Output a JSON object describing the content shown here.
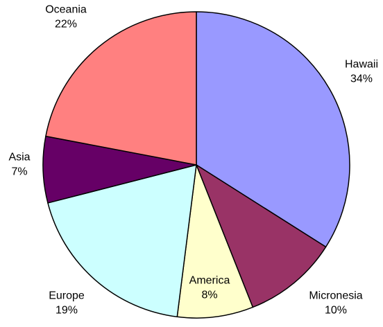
{
  "chart_data": {
    "type": "pie",
    "title": "",
    "slices": [
      {
        "label": "Hawaii",
        "value": 34,
        "value_label": "34%",
        "color": "#9999FF"
      },
      {
        "label": "Micronesia",
        "value": 10,
        "value_label": "10%",
        "color": "#993366"
      },
      {
        "label": "America",
        "value": 8,
        "value_label": "8%",
        "color": "#FFFFCC"
      },
      {
        "label": "Europe",
        "value": 19,
        "value_label": "19%",
        "color": "#CCFFFF"
      },
      {
        "label": "Asia",
        "value": 7,
        "value_label": "7%",
        "color": "#660066"
      },
      {
        "label": "Oceania",
        "value": 22,
        "value_label": "22%",
        "color": "#FF8080"
      }
    ],
    "start_angle": "12 o'clock",
    "direction": "clockwise",
    "legend": "none",
    "slice_border_color": "#000000"
  }
}
